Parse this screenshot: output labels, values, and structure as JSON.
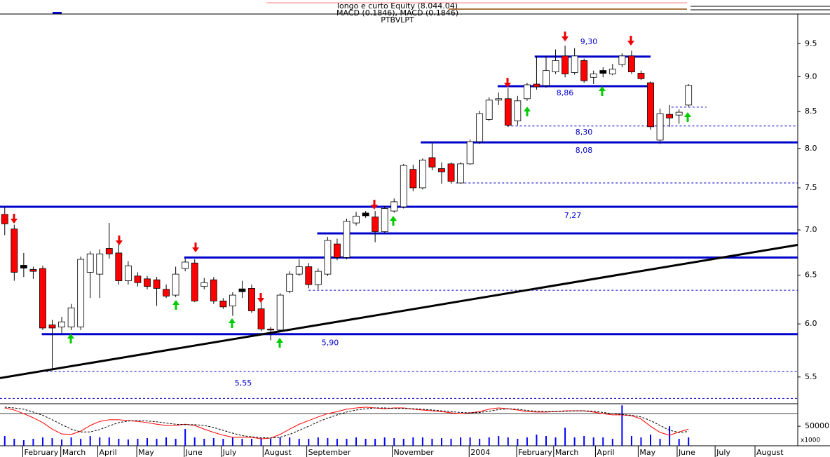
{
  "header": {
    "title": "longo e curto Equity (8.044.04)",
    "subtitle": "MACD (0.1846), MACD (0.1846)",
    "security": "PTBVLPT"
  },
  "chart_data": {
    "type": "candlestick",
    "log_scale": true,
    "x": [
      0.5,
      1.5,
      2.5,
      3.5,
      4.5,
      5.5,
      6.5,
      7.5,
      8.5,
      9.5,
      10.5,
      11.5,
      12.5,
      13.5,
      14.5,
      15.5,
      16.5,
      17.5,
      18.5,
      19.5,
      20.5,
      21.5,
      22.5,
      23.5,
      24.5,
      25.5,
      26.5,
      27.5,
      28.5,
      29.5,
      30.5,
      31.5,
      32.5,
      33.5,
      34.5,
      35.5,
      36.5,
      37.5,
      38.5,
      39.5,
      40.5,
      41.5,
      42.5,
      43.5,
      44.5,
      45.5,
      46.5,
      47.5,
      48.5,
      49.5,
      50.5,
      51.5,
      52.5,
      53.5,
      54.5,
      55.5,
      56.5,
      57.5,
      58.5,
      59.5,
      60.5,
      61.5,
      62.5,
      63.5,
      64.5,
      65.5,
      66.5,
      67.5,
      68.5,
      69.5,
      70.5,
      71.5,
      72.5
    ],
    "open": [
      7.18,
      7.01,
      6.59,
      6.56,
      6.57,
      5.99,
      5.97,
      5.97,
      5.97,
      6.53,
      6.51,
      6.79,
      6.74,
      6.44,
      6.49,
      6.46,
      6.45,
      6.35,
      6.29,
      6.57,
      6.63,
      6.38,
      6.45,
      6.23,
      6.18,
      6.34,
      6.36,
      6.15,
      5.95,
      5.94,
      6.33,
      6.51,
      6.59,
      6.4,
      6.51,
      6.84,
      6.69,
      7.08,
      7.18,
      7.15,
      6.98,
      7.22,
      7.27,
      7.73,
      7.5,
      7.88,
      7.74,
      7.8,
      7.56,
      7.8,
      8.09,
      8.39,
      8.66,
      8.68,
      8.37,
      8.68,
      8.89,
      8.87,
      9.07,
      9.31,
      9.06,
      9.24,
      8.99,
      9.07,
      9.04,
      9.18,
      9.31,
      9.05,
      8.91,
      8.11,
      8.46,
      8.45,
      8.59
    ],
    "high": [
      7.27,
      7.06,
      6.74,
      6.59,
      6.6,
      6.04,
      6.07,
      6.2,
      6.7,
      6.76,
      6.78,
      7.08,
      6.86,
      6.65,
      6.53,
      6.49,
      6.48,
      6.4,
      6.59,
      6.68,
      6.67,
      6.47,
      6.48,
      6.26,
      6.32,
      6.44,
      6.4,
      6.31,
      5.97,
      6.31,
      6.54,
      6.67,
      6.63,
      6.57,
      6.92,
      6.9,
      7.13,
      7.21,
      7.22,
      7.22,
      7.28,
      7.37,
      7.8,
      7.79,
      7.87,
      8.08,
      7.82,
      7.82,
      7.82,
      8.12,
      8.51,
      8.7,
      8.77,
      8.83,
      8.72,
      8.91,
      9.31,
      9.31,
      9.41,
      9.47,
      9.43,
      9.27,
      9.09,
      9.14,
      9.19,
      9.35,
      9.39,
      9.09,
      8.93,
      8.54,
      8.59,
      8.53,
      8.89
    ],
    "low": [
      6.94,
      6.44,
      6.48,
      6.46,
      5.94,
      5.56,
      5.91,
      5.94,
      5.94,
      6.26,
      6.26,
      6.68,
      6.4,
      6.4,
      6.38,
      6.35,
      6.18,
      6.26,
      6.27,
      6.54,
      6.22,
      6.35,
      6.2,
      6.15,
      6.08,
      6.26,
      6.11,
      5.93,
      5.84,
      5.92,
      6.31,
      6.49,
      6.36,
      6.35,
      6.49,
      6.66,
      6.67,
      7.05,
      7.14,
      6.86,
      6.96,
      7.2,
      7.25,
      7.46,
      7.48,
      7.72,
      7.55,
      7.55,
      7.55,
      7.79,
      8.06,
      8.37,
      8.59,
      8.29,
      8.31,
      8.65,
      8.81,
      8.84,
      9.04,
      8.99,
      9.03,
      8.91,
      8.89,
      8.99,
      9.02,
      9.14,
      9.04,
      8.95,
      8.25,
      8.06,
      8.29,
      8.33,
      8.57
    ],
    "close": [
      7.07,
      6.53,
      6.59,
      6.54,
      5.96,
      5.96,
      6.02,
      6.16,
      6.67,
      6.73,
      6.73,
      6.73,
      6.44,
      6.6,
      6.42,
      6.38,
      6.36,
      6.28,
      6.51,
      6.64,
      6.23,
      6.42,
      6.23,
      6.17,
      6.29,
      6.34,
      6.13,
      5.95,
      5.94,
      6.29,
      6.51,
      6.59,
      6.4,
      6.54,
      6.88,
      6.69,
      7.1,
      7.16,
      7.18,
      6.98,
      7.25,
      7.33,
      7.78,
      7.5,
      7.85,
      7.76,
      7.7,
      7.58,
      7.8,
      8.09,
      8.47,
      8.66,
      8.68,
      8.31,
      8.65,
      8.88,
      8.85,
      9.09,
      9.24,
      9.04,
      9.31,
      8.94,
      9.04,
      9.07,
      9.11,
      9.31,
      9.07,
      8.97,
      8.29,
      8.47,
      8.41,
      8.49,
      8.87
    ],
    "up_color": "#ffffff",
    "down_color": "#ff0000",
    "doji_color": "#000000",
    "xlim": [
      0,
      84
    ],
    "xticks": [
      {
        "value": 2.4,
        "label": "February"
      },
      {
        "value": 6.4,
        "label": "March"
      },
      {
        "value": 10.3,
        "label": "April"
      },
      {
        "value": 14.4,
        "label": "May"
      },
      {
        "value": 19.4,
        "label": "June"
      },
      {
        "value": 23.3,
        "label": "July"
      },
      {
        "value": 27.7,
        "label": "August"
      },
      {
        "value": 32.3,
        "label": "September"
      },
      {
        "value": 41.3,
        "label": "November"
      },
      {
        "value": 49.4,
        "label": "2004"
      },
      {
        "value": 54.4,
        "label": "February"
      },
      {
        "value": 58.3,
        "label": "March"
      },
      {
        "value": 62.7,
        "label": "April"
      },
      {
        "value": 67.2,
        "label": "May"
      },
      {
        "value": 71.3,
        "label": "June"
      },
      {
        "value": 75.3,
        "label": "July"
      },
      {
        "value": 79.5,
        "label": "August"
      }
    ],
    "ylim": [
      5.27,
      9.95
    ],
    "yticks": [
      9.5,
      {
        "value": 9,
        "label": "9.0"
      },
      8.5,
      {
        "value": 8,
        "label": "8.0"
      },
      7.5,
      {
        "value": 7,
        "label": "7.0"
      },
      6.5,
      {
        "value": 6,
        "label": "6.0"
      },
      5.5
    ],
    "level_color": "#0000cc",
    "levels": [
      {
        "value": 9.3,
        "label": "9,30",
        "x": [
          56.3,
          68.5
        ],
        "style": "solid"
      },
      {
        "value": 8.86,
        "label": "8,86",
        "x": [
          52.4,
          68.5
        ],
        "style": "solid"
      },
      {
        "value": 8.56,
        "x": [
          70.7,
          74.4
        ],
        "style": "dashed"
      },
      {
        "value": 8.3,
        "label": "8,30",
        "x": [
          53.4,
          84
        ],
        "style": "dashed"
      },
      {
        "value": 8.08,
        "label": "8,08",
        "x": [
          44.3,
          84
        ],
        "style": "solid"
      },
      {
        "value": 7.56,
        "x": [
          48,
          84
        ],
        "style": "dashed"
      },
      {
        "value": 7.27,
        "label": "7,27",
        "x": [
          0,
          84
        ],
        "style": "solid"
      },
      {
        "value": 6.96,
        "x": [
          33.4,
          84
        ],
        "style": "solid"
      },
      {
        "value": 6.69,
        "x": [
          19.4,
          84
        ],
        "style": "solid"
      },
      {
        "value": 6.34,
        "x": [
          32.5,
          84
        ],
        "style": "dashed"
      },
      {
        "value": 5.9,
        "label": "5,90",
        "x": [
          4.4,
          84
        ],
        "style": "solid"
      },
      {
        "value": 5.55,
        "label": "5,55",
        "x": [
          4.4,
          84
        ],
        "style": "dashed"
      },
      {
        "value": 5.31,
        "x": [
          0,
          84
        ],
        "style": "dashed"
      }
    ],
    "trendline": {
      "x": [
        0,
        84
      ],
      "values": [
        5.49,
        6.83
      ],
      "color": "#000000"
    },
    "volume": {
      "color": "#0000ff",
      "ylim": [
        0,
        104000
      ],
      "yticks": [
        50000
      ],
      "unit": "x1000",
      "values": [
        25000,
        17900,
        14300,
        17900,
        21400,
        19600,
        16100,
        21400,
        17900,
        25000,
        21400,
        21400,
        17900,
        16100,
        17900,
        19600,
        17900,
        21400,
        17900,
        42900,
        21400,
        17900,
        19600,
        17900,
        21400,
        17900,
        17900,
        19600,
        17900,
        21400,
        21400,
        17900,
        17900,
        21400,
        19600,
        17900,
        17900,
        21400,
        17900,
        17900,
        21400,
        19600,
        17900,
        21400,
        21400,
        17900,
        19600,
        17900,
        21400,
        21400,
        17900,
        21400,
        25000,
        21400,
        17900,
        21400,
        28600,
        25000,
        21400,
        46400,
        21400,
        25000,
        21400,
        21400,
        17900,
        103600,
        25000,
        21400,
        28600,
        17900,
        50000,
        17900,
        21400
      ]
    },
    "oscillator": {
      "ylim": [
        -0.5,
        0.5
      ],
      "series": [
        {
          "color": "#ff0000",
          "style": "solid",
          "values": [
            0.43,
            0.38,
            0.29,
            0.19,
            0.07,
            -0.09,
            -0.21,
            -0.22,
            -0.14,
            0,
            0.1,
            0.14,
            0.14,
            0.12,
            0.1,
            0.07,
            0.03,
            0,
            0,
            0.03,
            0,
            -0.09,
            -0.17,
            -0.24,
            -0.29,
            -0.29,
            -0.29,
            -0.33,
            -0.31,
            -0.22,
            -0.09,
            0.03,
            0.12,
            0.21,
            0.29,
            0.34,
            0.4,
            0.43,
            0.45,
            0.43,
            0.41,
            0.43,
            0.43,
            0.4,
            0.38,
            0.36,
            0.34,
            0.31,
            0.29,
            0.31,
            0.34,
            0.4,
            0.43,
            0.41,
            0.38,
            0.34,
            0.33,
            0.33,
            0.34,
            0.36,
            0.36,
            0.36,
            0.33,
            0.29,
            0.26,
            0.26,
            0.24,
            0.16,
            -0.02,
            -0.17,
            -0.24,
            -0.16,
            -0.09
          ]
        },
        {
          "color": "#000000",
          "style": "dashed",
          "values": [
            0.45,
            0.43,
            0.4,
            0.33,
            0.25,
            0.14,
            0.02,
            -0.09,
            -0.16,
            -0.16,
            -0.1,
            -0.01,
            0.07,
            0.11,
            0.12,
            0.11,
            0.09,
            0.06,
            0.03,
            0.02,
            0.02,
            0,
            -0.05,
            -0.12,
            -0.19,
            -0.25,
            -0.28,
            -0.3,
            -0.31,
            -0.29,
            -0.22,
            -0.12,
            -0.02,
            0.09,
            0.18,
            0.26,
            0.33,
            0.38,
            0.41,
            0.43,
            0.43,
            0.42,
            0.42,
            0.41,
            0.4,
            0.38,
            0.36,
            0.34,
            0.32,
            0.31,
            0.32,
            0.35,
            0.39,
            0.41,
            0.4,
            0.37,
            0.35,
            0.34,
            0.34,
            0.35,
            0.36,
            0.36,
            0.35,
            0.32,
            0.29,
            0.27,
            0.25,
            0.21,
            0.12,
            0,
            -0.12,
            -0.17,
            -0.15
          ]
        }
      ]
    }
  }
}
